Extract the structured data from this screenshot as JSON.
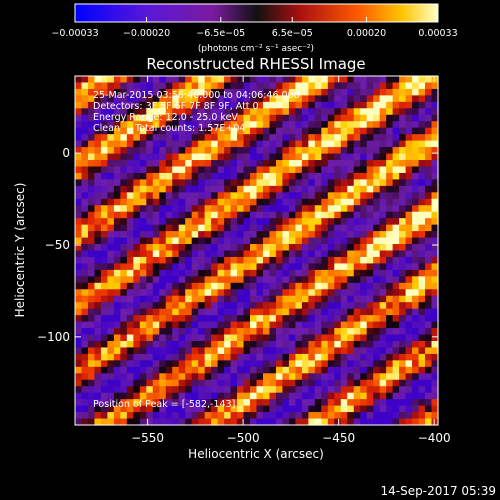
{
  "chart_data": {
    "type": "heatmap",
    "title": "Reconstructed RHESSI Image",
    "xlabel": "Heliocentric X (arcsec)",
    "ylabel": "Heliocentric Y (arcsec)",
    "xlim": [
      -588,
      -398
    ],
    "ylim": [
      -148,
      42
    ],
    "x_ticks": [
      -550,
      -500,
      -450,
      -400
    ],
    "y_ticks": [
      0,
      -50,
      -100
    ],
    "x_tick_labels": [
      "−550",
      "−500",
      "−450",
      "−400"
    ],
    "y_tick_labels": [
      "0",
      "−50",
      "−100"
    ],
    "colorbar": {
      "min": -0.00033,
      "max": 0.00033,
      "ticks": [
        -0.00033,
        -0.0002,
        -6.5e-05,
        6.5e-05,
        0.0002,
        0.00033
      ],
      "tick_labels": [
        "−0.00033",
        "−0.00020",
        "−6.5e−05",
        "6.5e−05",
        "0.00020",
        "0.00033"
      ],
      "units_label": "(photons cm⁻² s⁻¹ asec⁻²)"
    },
    "annotations": [
      "25-Mar-2015 03:56:46.000 to 04:06:46.000",
      "Detectors: 3F 5F 6F 7F 8F 9F, Att 0",
      "Energy Range: 12.0 - 25.0 keV",
      "Clean     Total counts: 1.57E+04"
    ],
    "peak_label": "Position of Peak = [-582,-143]",
    "stripe_orientation": "diagonal, descending to the right",
    "grid": false
  },
  "timestamp": "14-Sep-2017 05:39"
}
